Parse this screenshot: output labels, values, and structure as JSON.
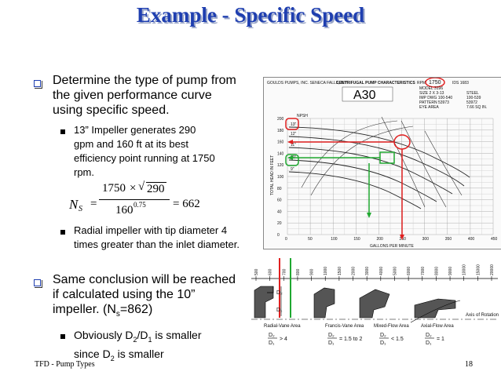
{
  "title": "Example - Specific Speed",
  "bullets": {
    "b1": "Determine the type of pump from the given performance curve using specific speed.",
    "b1_sub1": "13” Impeller generates 290 gpm and 160 ft at its best efficiency point running at 1750 rpm.",
    "equation": {
      "lhs": "N",
      "lhs_sub": "S",
      "num_a": "1750",
      "times": "×",
      "num_b": "290",
      "den_base": "160",
      "den_exp": "0.75",
      "result": "= 662"
    },
    "b1_sub2": "Radial impeller with tip diameter 4 times greater than the inlet diameter.",
    "b2": "Same conclusion will be reached if calculated using the 10” impeller. (N",
    "b2_sub": "s",
    "b2_tail": "=862)",
    "b2_sub1_a": "Obviously D",
    "b2_sub1_a_sub": "2",
    "b2_sub1_b": "/D",
    "b2_sub1_b_sub": "1",
    "b2_sub1_c": " is smaller",
    "b2_sub1_d": "since D",
    "b2_sub1_d_sub": "2",
    "b2_sub1_e": " is smaller"
  },
  "chart": {
    "header_left": "GOULDS PUMPS, INC. SENECA FALLS, N.Y.",
    "header_center": "CENTRIFUGAL PUMP CHARACTERISTICS",
    "rpm_label": "RPM",
    "rpm": "1750",
    "ids": "IDS 1683",
    "model_name": "A30",
    "info": [
      "MODEL 3196",
      "SIZE 2 X 3-13",
      "IMP DWG 100-540",
      "PATTERN 53973",
      "EYE AREA"
    ],
    "info_right": [
      "STEEL",
      "100-539",
      "53972",
      "7.66 SQ IN."
    ],
    "y_axis_label": "TOTAL HEAD IN FEET",
    "y_ticks": [
      "200",
      "180",
      "160",
      "140",
      "120",
      "100",
      "80",
      "60",
      "40",
      "20",
      "0"
    ],
    "x_ticks": [
      "0",
      "50",
      "100",
      "150",
      "200",
      "250",
      "300",
      "350",
      "400",
      "450"
    ],
    "x_axis_label": "GALLONS PER MINUTE",
    "npsh_label": "NPSH",
    "impeller_labels": [
      "13\"",
      "12\"",
      "11\"",
      "10\"",
      "9\""
    ]
  },
  "strip": {
    "top_ticks": [
      "500",
      "600",
      "700",
      "800",
      "900",
      "1000",
      "1500",
      "2000",
      "3000",
      "4000",
      "5000",
      "6000",
      "7000",
      "8000",
      "9000",
      "10000",
      "15000",
      "20000"
    ],
    "d2": "D₂",
    "d1": "D₁",
    "areas": [
      "Radial-Vane Area",
      "Francis-Vane Area",
      "Mixed-Flow Area",
      "Axial-Flow Area"
    ],
    "axis_of_rotation": "Axis of Rotation",
    "ratio1": "> 4",
    "ratio2": "= 1.5 to 2",
    "ratio3": "< 1.5",
    "ratio4": "= 1"
  },
  "footer": {
    "left": "TFD - Pump Types",
    "right": "18"
  },
  "colors": {
    "title": "#1f3fb0",
    "red": "#e02020",
    "green": "#1fa830",
    "bullet_box": "#1f3fb0"
  }
}
